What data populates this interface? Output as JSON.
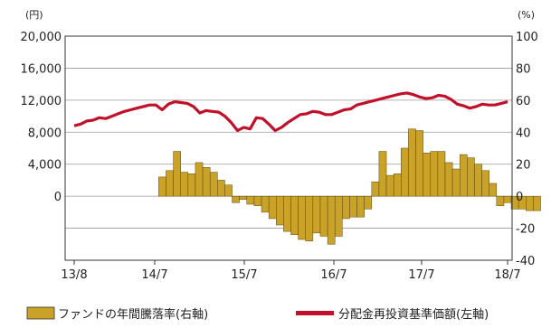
{
  "chart_data": {
    "type": "bar+line",
    "left_axis": {
      "unit": "(円)",
      "ticks": [
        "20,000",
        "16,000",
        "12,000",
        "8,000",
        "4,000",
        "0"
      ],
      "tick_values": [
        20000,
        16000,
        12000,
        8000,
        4000,
        0
      ],
      "range": [
        -8000,
        20000
      ]
    },
    "right_axis": {
      "unit": "(%)",
      "ticks": [
        "100",
        "80",
        "60",
        "40",
        "20",
        "0",
        "-20",
        "-40"
      ],
      "tick_values": [
        100,
        80,
        60,
        40,
        20,
        0,
        -20,
        -40
      ],
      "range": [
        -40,
        100
      ]
    },
    "x_axis": {
      "ticks": [
        "13/8",
        "14/7",
        "15/7",
        "16/7",
        "17/7",
        "18/7"
      ]
    },
    "grid": true,
    "bar_color": "#c9a227",
    "line_color": "#c0102a",
    "series": [
      {
        "name": "ファンドの年間騰落率(右軸)",
        "type": "bar",
        "axis": "right",
        "start_month": 12,
        "values": [
          12,
          16,
          28,
          15,
          14,
          21,
          18,
          15,
          10,
          7,
          -4,
          -2,
          -5,
          -6,
          -10,
          -14,
          -18,
          -22,
          -24,
          -27,
          -28,
          -23,
          -25,
          -30,
          -25,
          -14,
          -13,
          -13,
          -8,
          9,
          28,
          13,
          14,
          30,
          42,
          41,
          27,
          28,
          28,
          21,
          17,
          26,
          24,
          20,
          16,
          8,
          -6,
          -4,
          -8,
          -8,
          -9,
          -9
        ]
      },
      {
        "name": "分配金再投資基準価額(左軸)",
        "type": "line",
        "axis": "left",
        "start_month": 0,
        "values": [
          8800,
          9000,
          9400,
          9500,
          9800,
          9700,
          10000,
          10300,
          10600,
          10800,
          11000,
          11200,
          11400,
          11400,
          10800,
          11500,
          11800,
          11700,
          11600,
          11200,
          10400,
          10700,
          10600,
          10500,
          10000,
          9200,
          8200,
          8600,
          8400,
          9800,
          9700,
          9000,
          8200,
          8600,
          9200,
          9700,
          10200,
          10300,
          10600,
          10500,
          10200,
          10200,
          10500,
          10800,
          10900,
          11400,
          11600,
          11800,
          12000,
          12200,
          12400,
          12600,
          12800,
          12900,
          12700,
          12400,
          12200,
          12300,
          12600,
          12500,
          12100,
          11500,
          11300,
          11000,
          11200,
          11500,
          11400,
          11400,
          11600,
          11800
        ]
      }
    ]
  }
}
